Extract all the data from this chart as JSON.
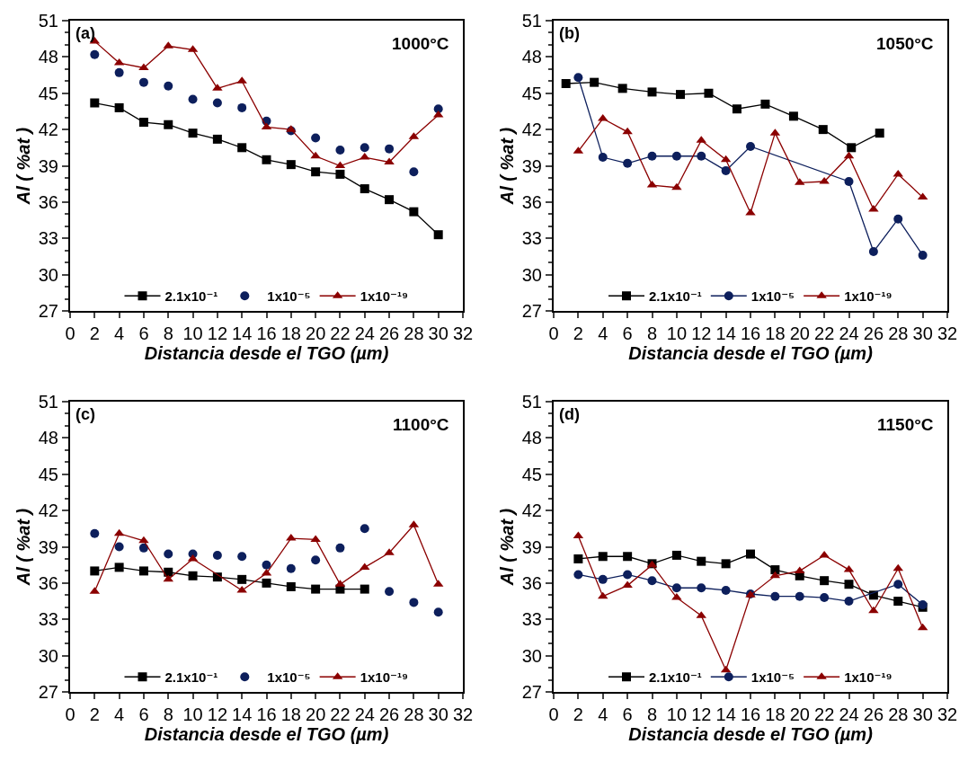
{
  "chart_data": [
    {
      "type": "line",
      "title": "1000°C",
      "annotations": [
        "(a)"
      ],
      "xlabel": "Distancia desde el TGO (µm)",
      "ylabel": "Al ( %at )",
      "xlim": [
        0,
        32
      ],
      "xticks": [
        0,
        2,
        4,
        6,
        8,
        10,
        12,
        14,
        16,
        18,
        20,
        22,
        24,
        26,
        28,
        30,
        32
      ],
      "ylim": [
        27,
        51
      ],
      "yticks": [
        27,
        30,
        33,
        36,
        39,
        42,
        45,
        48,
        51
      ],
      "grid": false,
      "legend": "bottom",
      "line_style": "solid",
      "series": [
        {
          "name": "2.1x10⁻¹",
          "color": "#000000",
          "marker": "square",
          "x": [
            2,
            4,
            6,
            8,
            10,
            12,
            14,
            16,
            18,
            20,
            22,
            24,
            26,
            28,
            30
          ],
          "values": [
            44.2,
            43.8,
            42.6,
            42.4,
            41.7,
            41.2,
            40.5,
            39.5,
            39.1,
            38.5,
            38.3,
            37.1,
            36.2,
            35.2,
            33.3
          ]
        },
        {
          "name": "1x10⁻⁵",
          "type": "scatter",
          "color": "#0d1f5c",
          "marker": "circle",
          "x": [
            2,
            4,
            6,
            8,
            10,
            12,
            14,
            16,
            18,
            20,
            22,
            24,
            26,
            28,
            30
          ],
          "values": [
            48.2,
            46.7,
            45.9,
            45.6,
            44.5,
            44.2,
            43.8,
            42.7,
            41.9,
            41.3,
            40.3,
            40.5,
            40.4,
            38.5,
            43.7
          ]
        },
        {
          "name": "1x10⁻¹⁹",
          "color": "#8b0000",
          "marker": "triangle",
          "x": [
            2,
            4,
            6,
            8,
            10,
            12,
            14,
            16,
            18,
            20,
            22,
            24,
            26,
            28,
            30
          ],
          "values": [
            49.3,
            47.5,
            47.1,
            48.9,
            48.6,
            45.4,
            46.0,
            42.2,
            42.0,
            39.8,
            39.0,
            39.7,
            39.3,
            41.4,
            43.2
          ]
        }
      ]
    },
    {
      "type": "line",
      "title": "1050°C",
      "annotations": [
        "(b)"
      ],
      "xlabel": "Distancia desde el TGO (µm)",
      "ylabel": "Al ( %at )",
      "xlim": [
        0,
        32
      ],
      "xticks": [
        0,
        2,
        4,
        6,
        8,
        10,
        12,
        14,
        16,
        18,
        20,
        22,
        24,
        26,
        28,
        30,
        32
      ],
      "ylim": [
        27,
        51
      ],
      "yticks": [
        27,
        30,
        33,
        36,
        39,
        42,
        45,
        48,
        51
      ],
      "grid": false,
      "legend": "bottom",
      "line_style": "solid",
      "series": [
        {
          "name": "2.1x10⁻¹",
          "color": "#000000",
          "marker": "square",
          "x": [
            1,
            3.3,
            5.6,
            8,
            10.3,
            12.6,
            14.9,
            17.2,
            19.5,
            21.9,
            24.2,
            26.5
          ],
          "values": [
            45.8,
            45.9,
            45.4,
            45.1,
            44.9,
            45.0,
            43.7,
            44.1,
            43.1,
            42.0,
            40.5,
            41.7
          ]
        },
        {
          "name": "1x10⁻⁵",
          "color": "#0d1f5c",
          "marker": "circle",
          "x": [
            2,
            4,
            6,
            8,
            10,
            12,
            14,
            16,
            24,
            26,
            28,
            30
          ],
          "values": [
            46.3,
            39.7,
            39.2,
            39.8,
            39.8,
            39.8,
            38.6,
            40.6,
            37.7,
            31.9,
            34.6,
            31.6
          ]
        },
        {
          "name": "1x10⁻¹⁹",
          "color": "#8b0000",
          "marker": "triangle",
          "x": [
            2,
            4,
            6,
            8,
            10,
            12,
            14,
            16,
            18,
            20,
            22,
            24,
            26,
            28,
            30
          ],
          "values": [
            40.2,
            42.9,
            41.8,
            37.4,
            37.2,
            41.1,
            39.5,
            35.1,
            41.7,
            37.6,
            37.7,
            39.8,
            35.4,
            38.3,
            36.4
          ]
        }
      ]
    },
    {
      "type": "line",
      "title": "1100°C",
      "annotations": [
        "(c)"
      ],
      "xlabel": "Distancia desde el TGO (µm)",
      "ylabel": "Al ( %at )",
      "xlim": [
        0,
        32
      ],
      "xticks": [
        0,
        2,
        4,
        6,
        8,
        10,
        12,
        14,
        16,
        18,
        20,
        22,
        24,
        26,
        28,
        30,
        32
      ],
      "ylim": [
        27,
        51
      ],
      "yticks": [
        27,
        30,
        33,
        36,
        39,
        42,
        45,
        48,
        51
      ],
      "grid": false,
      "legend": "bottom",
      "line_style": "solid",
      "series": [
        {
          "name": "2.1x10⁻¹",
          "color": "#000000",
          "marker": "square",
          "x": [
            2,
            4,
            6,
            8,
            10,
            12,
            14,
            16,
            18,
            20,
            22,
            24
          ],
          "values": [
            37.0,
            37.3,
            37.0,
            36.9,
            36.6,
            36.5,
            36.3,
            36.0,
            35.7,
            35.5,
            35.5,
            35.5
          ]
        },
        {
          "name": "1x10⁻⁵",
          "type": "scatter",
          "color": "#0d1f5c",
          "marker": "circle",
          "x": [
            2,
            4,
            6,
            8,
            10,
            12,
            14,
            16,
            18,
            20,
            22,
            24,
            26,
            28,
            30
          ],
          "values": [
            40.1,
            39.0,
            38.9,
            38.4,
            38.4,
            38.3,
            38.2,
            37.5,
            37.2,
            37.9,
            38.9,
            40.5,
            35.3,
            34.4,
            33.6
          ]
        },
        {
          "name": "1x10⁻¹⁹",
          "color": "#8b0000",
          "marker": "triangle",
          "x": [
            2,
            4,
            6,
            8,
            10,
            14,
            16,
            18,
            20,
            22,
            24,
            26,
            28,
            30
          ],
          "values": [
            35.3,
            40.1,
            39.5,
            36.3,
            38.0,
            35.4,
            36.8,
            39.7,
            39.6,
            35.9,
            37.3,
            38.5,
            40.8,
            35.9
          ]
        }
      ]
    },
    {
      "type": "line",
      "title": "1150°C",
      "annotations": [
        "(d)"
      ],
      "xlabel": "Distancia desde el TGO (µm)",
      "ylabel": "Al ( %at )",
      "xlim": [
        0,
        32
      ],
      "xticks": [
        0,
        2,
        4,
        6,
        8,
        10,
        12,
        14,
        16,
        18,
        20,
        22,
        24,
        26,
        28,
        30,
        32
      ],
      "ylim": [
        27,
        51
      ],
      "yticks": [
        27,
        30,
        33,
        36,
        39,
        42,
        45,
        48,
        51
      ],
      "grid": false,
      "legend": "bottom",
      "line_style": "solid",
      "series": [
        {
          "name": "2.1x10⁻¹",
          "color": "#000000",
          "marker": "square",
          "x": [
            2,
            4,
            6,
            8,
            10,
            12,
            14,
            16,
            18,
            20,
            22,
            24,
            26,
            28,
            30
          ],
          "values": [
            38.0,
            38.2,
            38.2,
            37.6,
            38.3,
            37.8,
            37.6,
            38.4,
            37.1,
            36.6,
            36.2,
            35.9,
            35.0,
            34.5,
            34.0
          ]
        },
        {
          "name": "1x10⁻⁵",
          "color": "#0d1f5c",
          "marker": "circle",
          "x": [
            2,
            4,
            6,
            8,
            10,
            12,
            14,
            16,
            18,
            20,
            22,
            24,
            28,
            30
          ],
          "values": [
            36.7,
            36.3,
            36.7,
            36.2,
            35.6,
            35.6,
            35.4,
            35.1,
            34.9,
            34.9,
            34.8,
            34.5,
            35.9,
            34.2
          ]
        },
        {
          "name": "1x10⁻¹⁹",
          "color": "#8b0000",
          "marker": "triangle",
          "x": [
            2,
            4,
            6,
            8,
            10,
            12,
            14,
            16,
            18,
            20,
            22,
            24,
            26,
            28,
            30
          ],
          "values": [
            39.9,
            34.9,
            35.8,
            37.5,
            34.8,
            33.3,
            28.8,
            35.0,
            36.6,
            37.0,
            38.3,
            37.1,
            33.7,
            37.2,
            32.3
          ]
        }
      ]
    }
  ]
}
